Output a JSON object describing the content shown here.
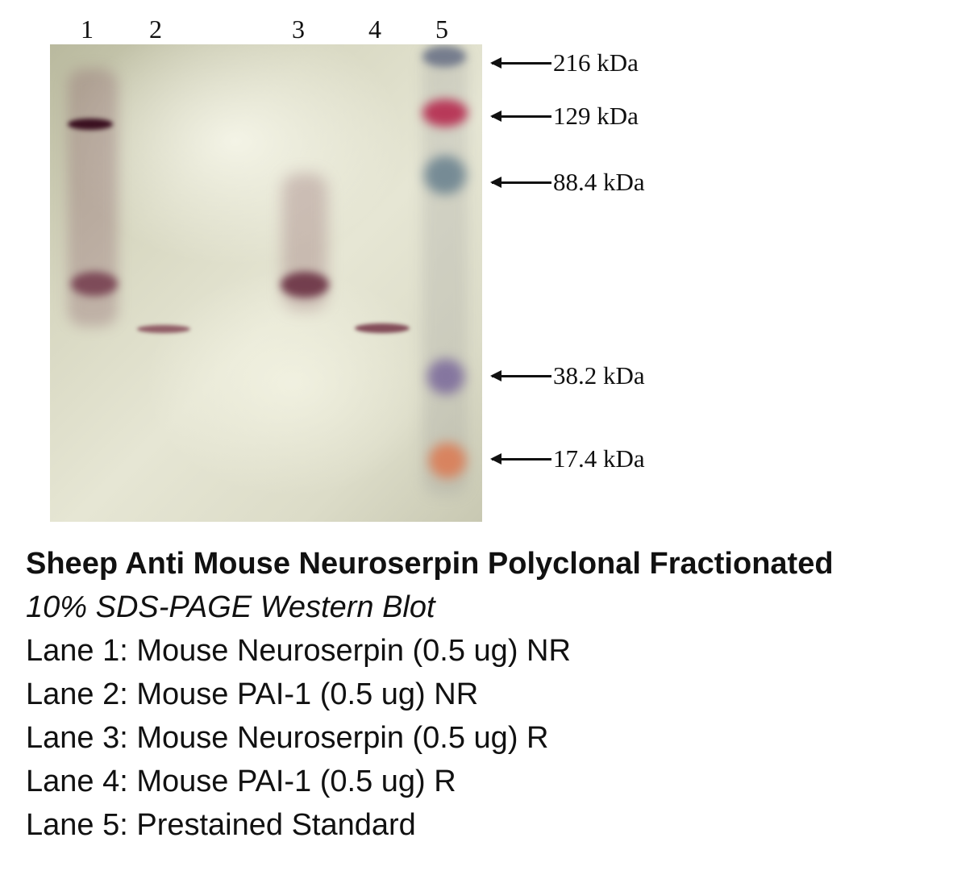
{
  "lanes": [
    "1",
    "2",
    "3",
    "4",
    "5"
  ],
  "markers": [
    "216 kDa",
    "129 kDa",
    "88.4 kDa",
    "38.2 kDa",
    "17.4 kDa"
  ],
  "caption": {
    "title": "Sheep Anti Mouse Neuroserpin Polyclonal Fractionated",
    "subtitle": "10% SDS-PAGE Western Blot",
    "lines": [
      "Lane 1: Mouse Neuroserpin (0.5 ug) NR",
      "Lane 2: Mouse PAI-1 (0.5 ug) NR",
      "Lane 3: Mouse Neuroserpin (0.5 ug) R",
      "Lane 4: Mouse PAI-1 (0.5 ug) R",
      "Lane 5: Prestained Standard"
    ]
  }
}
